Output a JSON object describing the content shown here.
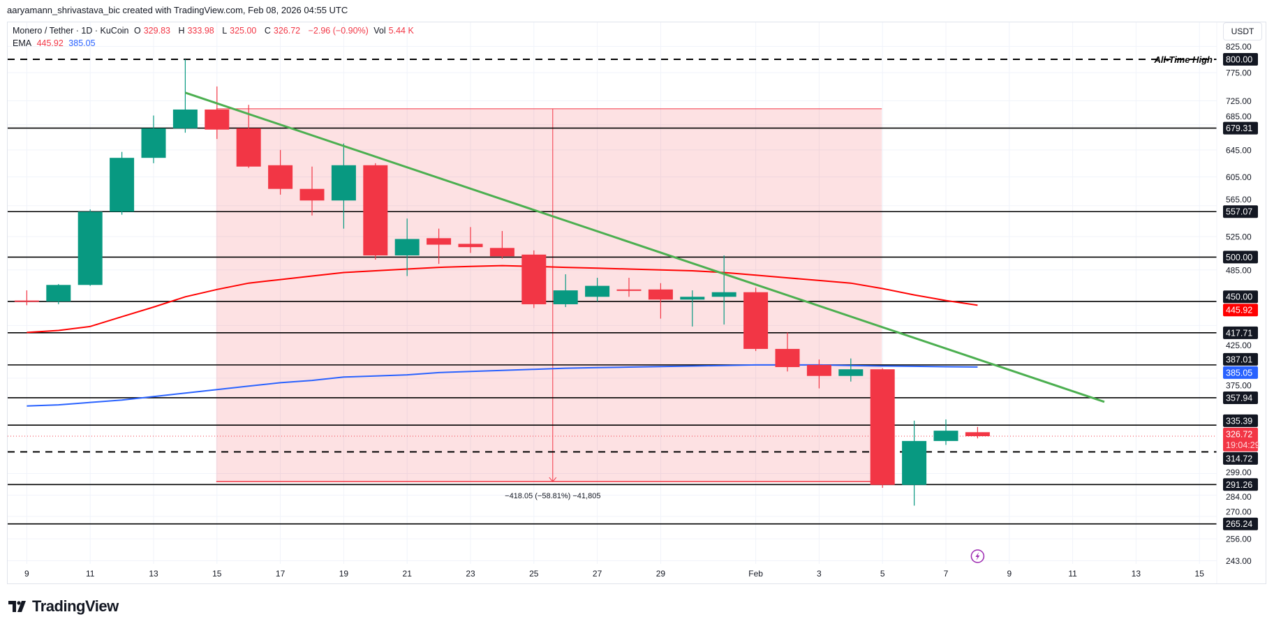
{
  "credit": "aaryamann_shrivastava_bic created with TradingView.com, Feb 08, 2026 04:55 UTC",
  "legend": {
    "symbol": "Monero / Tether · 1D · KuCoin",
    "o_label": "O",
    "o": "329.83",
    "h_label": "H",
    "h": "333.98",
    "l_label": "L",
    "l": "325.00",
    "c_label": "C",
    "c": "326.72",
    "change": "−2.96 (−0.90%)",
    "vol_label": "Vol",
    "vol": "5.44 K",
    "ema_label": "EMA",
    "ema1": "445.92",
    "ema2": "385.05"
  },
  "unit": "USDT",
  "logo": "TradingView",
  "chart_data": {
    "type": "candlestick",
    "scale": "log",
    "ylim": [
      236,
      840
    ],
    "grid": true,
    "colors": {
      "up": "#089981",
      "down": "#f23645",
      "ema1": "#ff0000",
      "ema2": "#2962ff",
      "trendline": "#4caf50",
      "measure": "#f23645",
      "alert": "#9c27b0"
    },
    "dates": [
      "Jan 9",
      "Jan 10",
      "Jan 11",
      "Jan 12",
      "Jan 13",
      "Jan 14",
      "Jan 15",
      "Jan 16",
      "Jan 17",
      "Jan 18",
      "Jan 19",
      "Jan 20",
      "Jan 21",
      "Jan 22",
      "Jan 23",
      "Jan 24",
      "Jan 25",
      "Jan 26",
      "Jan 27",
      "Jan 28",
      "Jan 29",
      "Jan 30",
      "Jan 31",
      "Feb 1",
      "Feb 2",
      "Feb 3",
      "Feb 4",
      "Feb 5",
      "Feb 6",
      "Feb 7",
      "Feb 8"
    ],
    "ohlc": [
      [
        451,
        462,
        446,
        450
      ],
      [
        450,
        469,
        447,
        468
      ],
      [
        468,
        560,
        467,
        557
      ],
      [
        557,
        642,
        553,
        633
      ],
      [
        633,
        700,
        625,
        679
      ],
      [
        679,
        800,
        672,
        710
      ],
      [
        710,
        750,
        662,
        677
      ],
      [
        679,
        718,
        618,
        620
      ],
      [
        622,
        645,
        580,
        588
      ],
      [
        588,
        620,
        552,
        572
      ],
      [
        572,
        655,
        535,
        622
      ],
      [
        622,
        625,
        497,
        502
      ],
      [
        502,
        548,
        478,
        522
      ],
      [
        523,
        535,
        492,
        515
      ],
      [
        516,
        537,
        505,
        512
      ],
      [
        511,
        532,
        498,
        501
      ],
      [
        503,
        508,
        443,
        447
      ],
      [
        447,
        480,
        444,
        462
      ],
      [
        455,
        476,
        450,
        467
      ],
      [
        463,
        476,
        455,
        462
      ],
      [
        463,
        470,
        432,
        452
      ],
      [
        452,
        462,
        424,
        455
      ],
      [
        455,
        502,
        426,
        460
      ],
      [
        460,
        465,
        400,
        402
      ],
      [
        402,
        418,
        381,
        385
      ],
      [
        387,
        392,
        366,
        377
      ],
      [
        377,
        393,
        372,
        383
      ],
      [
        383,
        384,
        289,
        291
      ],
      [
        291,
        339,
        277,
        323
      ],
      [
        323,
        340,
        320,
        331
      ],
      [
        329.83,
        333.98,
        325.0,
        326.72
      ]
    ],
    "ema1": [
      418,
      420,
      424,
      434,
      444,
      455,
      463,
      470,
      474,
      478,
      482,
      484,
      486,
      488,
      489,
      490,
      489,
      488,
      487,
      486,
      485,
      484,
      482,
      479,
      476,
      473,
      470,
      464,
      457,
      451,
      445.92
    ],
    "ema2": [
      351,
      352,
      354,
      356,
      359,
      362,
      365,
      368,
      371,
      373,
      376,
      377,
      378,
      380,
      381,
      382,
      383,
      384,
      384.5,
      385,
      385.5,
      386,
      386.5,
      387,
      387,
      387,
      386.5,
      386,
      385.7,
      385.3,
      385.05
    ],
    "y_ticks": [
      "825.00",
      "775.00",
      "725.00",
      "685.00",
      "645.00",
      "605.00",
      "565.00",
      "525.00",
      "485.00",
      "425.00",
      "375.00",
      "299.00",
      "284.00",
      "270.00",
      "256.00",
      "243.00"
    ],
    "x_ticks": [
      {
        "label": "9",
        "date": "Jan 9"
      },
      {
        "label": "11",
        "date": "Jan 11"
      },
      {
        "label": "13",
        "date": "Jan 13"
      },
      {
        "label": "15",
        "date": "Jan 15"
      },
      {
        "label": "17",
        "date": "Jan 17"
      },
      {
        "label": "19",
        "date": "Jan 19"
      },
      {
        "label": "21",
        "date": "Jan 21"
      },
      {
        "label": "23",
        "date": "Jan 23"
      },
      {
        "label": "25",
        "date": "Jan 25"
      },
      {
        "label": "27",
        "date": "Jan 27"
      },
      {
        "label": "29",
        "date": "Jan 29"
      },
      {
        "label": "Feb",
        "date": "Feb 1"
      },
      {
        "label": "3",
        "date": "Feb 3"
      },
      {
        "label": "5",
        "date": "Feb 5"
      },
      {
        "label": "7",
        "date": "Feb 7"
      },
      {
        "label": "9",
        "date": "Feb 9"
      },
      {
        "label": "11",
        "date": "Feb 11"
      },
      {
        "label": "13",
        "date": "Feb 13"
      },
      {
        "label": "15",
        "date": "Feb 15"
      }
    ],
    "levels": [
      {
        "price": 800.0,
        "label": "800.00",
        "style": "dashed",
        "note": "All-Time High"
      },
      {
        "price": 679.31,
        "label": "679.31",
        "style": "solid"
      },
      {
        "price": 557.07,
        "label": "557.07",
        "style": "solid"
      },
      {
        "price": 500.0,
        "label": "500.00",
        "style": "solid"
      },
      {
        "price": 450.0,
        "label": "450.00",
        "style": "solid"
      },
      {
        "price": 417.71,
        "label": "417.71",
        "style": "solid"
      },
      {
        "price": 387.01,
        "label": "387.01",
        "style": "solid"
      },
      {
        "price": 357.94,
        "label": "357.94",
        "style": "solid"
      },
      {
        "price": 335.39,
        "label": "335.39",
        "style": "solid"
      },
      {
        "price": 314.72,
        "label": "314.72",
        "style": "dashed"
      },
      {
        "price": 291.26,
        "label": "291.26",
        "style": "solid"
      },
      {
        "price": 265.24,
        "label": "265.24",
        "style": "solid"
      }
    ],
    "ema1_label": "445.92",
    "ema2_label": "385.05",
    "last_price": {
      "price": 326.72,
      "label": "326.72",
      "countdown": "19:04:29"
    },
    "trendline": {
      "start": {
        "date": "Jan 14",
        "price": 739
      },
      "end": {
        "date": "Feb 12",
        "price": 354.5
      }
    },
    "measure": {
      "start_date": "Jan 15",
      "end_date": "Feb 5",
      "top": 711.3,
      "bottom": 293.3,
      "arrow_date": "Jan 25",
      "label": "−418.05 (−58.81%) −41,805"
    },
    "alert_marker": {
      "date": "Feb 8",
      "icon": "lightning-icon"
    }
  }
}
